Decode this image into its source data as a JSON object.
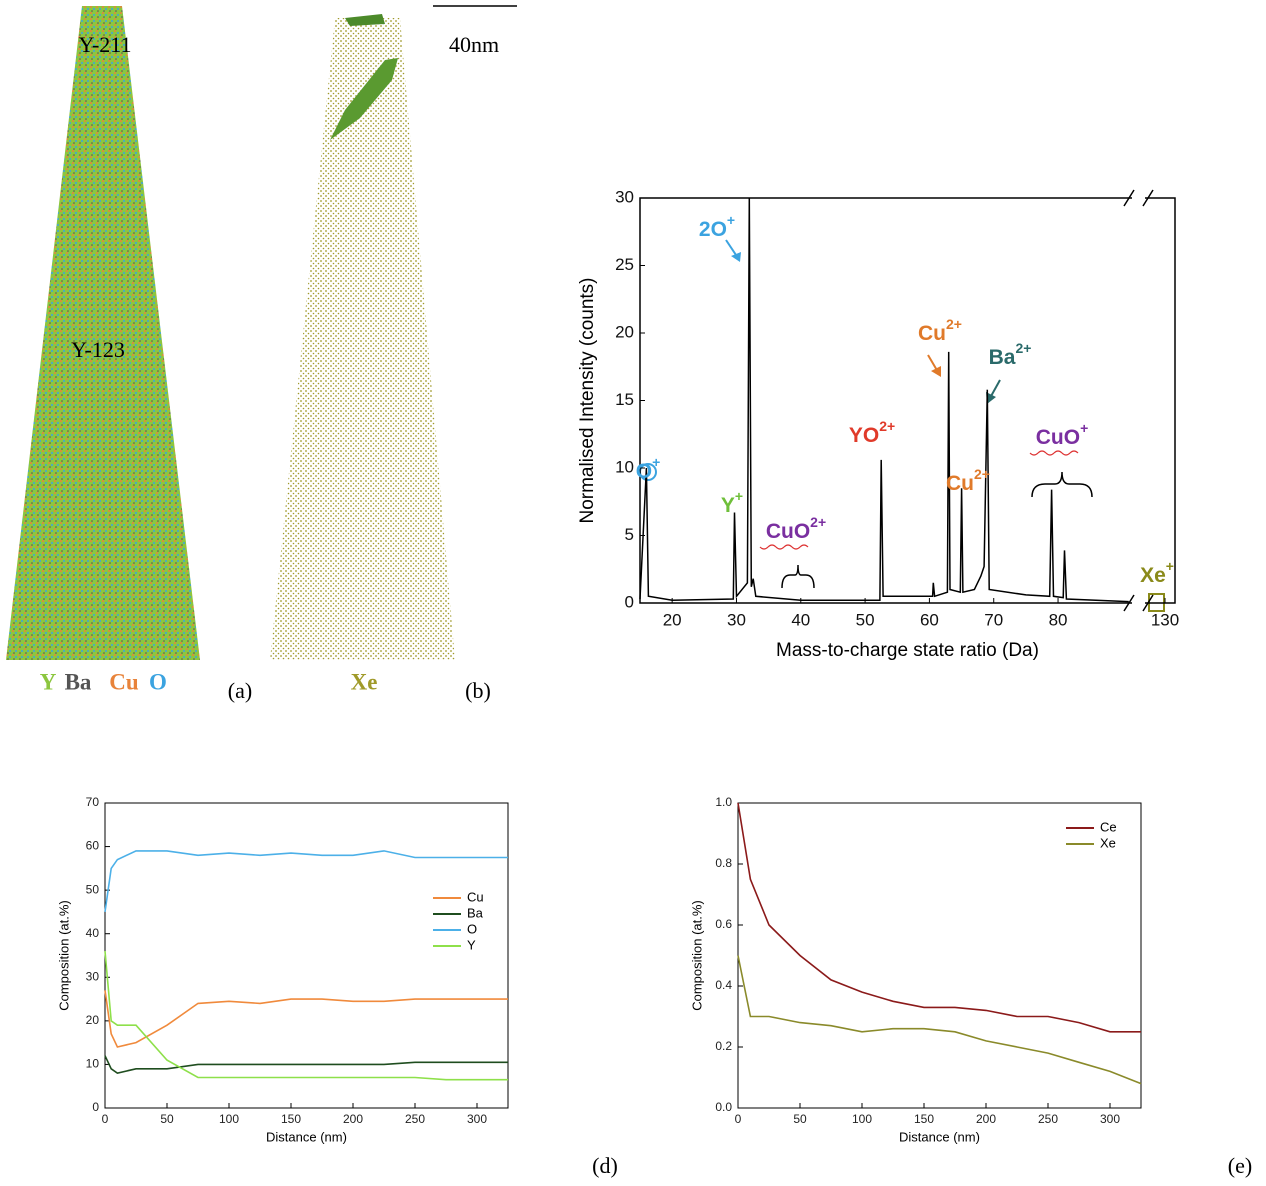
{
  "panels": {
    "a": {
      "label_top": "Y-211",
      "label_mid": "Y-123",
      "legend": [
        {
          "text": "Y",
          "color": "#8cc63f"
        },
        {
          "text": "Ba",
          "color": "#555555"
        },
        {
          "text": "Cu",
          "color": "#e8833a"
        },
        {
          "text": "O",
          "color": "#3ba3e0"
        }
      ],
      "tag": "(a)"
    },
    "b": {
      "scale": "40nm",
      "legend": {
        "text": "Xe",
        "color": "#a09a2a"
      },
      "tag": "(b)"
    },
    "d": {
      "tag": "(d)"
    },
    "e": {
      "tag": "(e)"
    }
  },
  "chart_data": [
    {
      "type": "line",
      "color": "#000000",
      "xlabel": "Mass-to-charge state ratio (Da)",
      "ylabel": "Normalised Intensity (counts)",
      "x": [
        15,
        16,
        16.3,
        20,
        29.5,
        29.7,
        30,
        31.7,
        32,
        32.3,
        32.6,
        33,
        40,
        52.3,
        52.5,
        52.8,
        60.5,
        60.6,
        60.8,
        62.8,
        63,
        63.2,
        64.8,
        65,
        65.2,
        67,
        67.5,
        68,
        68.5,
        69,
        69.3,
        75,
        78.7,
        79,
        79.3,
        80.8,
        81,
        81.3,
        91,
        128,
        130
      ],
      "values": [
        0.3,
        10,
        0.5,
        0.2,
        0.3,
        6.7,
        0.5,
        1.5,
        30,
        1.2,
        1.8,
        0.5,
        0.2,
        0.2,
        10.6,
        0.5,
        0.5,
        1.5,
        0.5,
        0.8,
        18.6,
        1,
        0.8,
        8.5,
        0.8,
        1,
        1.5,
        2,
        2.7,
        15.8,
        1,
        0.6,
        0.5,
        8.4,
        0.5,
        0.4,
        3.9,
        0.3,
        0.1,
        null,
        0.1
      ],
      "xlim": [
        15,
        131
      ],
      "xbreak": [
        91.5,
        128
      ],
      "xticks": [
        20,
        30,
        40,
        50,
        60,
        70,
        80,
        130
      ],
      "ylim": [
        0,
        30
      ],
      "yticks": [
        0,
        5,
        10,
        15,
        20,
        25,
        30
      ],
      "annotations": [
        {
          "text": "2O",
          "sup": "+",
          "color": "#3ba3e0"
        },
        {
          "text": "O",
          "sup": "+",
          "color": "#3ba3e0"
        },
        {
          "text": "Y",
          "sup": "+",
          "color": "#6fbf3a"
        },
        {
          "text": "CuO",
          "sup": "2+",
          "color": "#7a2fa0"
        },
        {
          "text": "YO",
          "sup": "2+",
          "color": "#e03a2a"
        },
        {
          "text": "Cu",
          "sup": "2+",
          "color": "#e07a2a"
        },
        {
          "text": "Ba",
          "sup": "2+",
          "color": "#2a6a6a"
        },
        {
          "text": "Cu",
          "sup": "2+",
          "color": "#e07a2a"
        },
        {
          "text": "CuO",
          "sup": "+",
          "color": "#7a2fa0"
        },
        {
          "text": "Xe",
          "sup": "+",
          "color": "#8a8a1a"
        }
      ]
    },
    {
      "type": "line",
      "xlabel": "Distance (nm)",
      "ylabel": "Composition (at.%)",
      "legend": "right",
      "x": [
        0,
        5,
        10,
        25,
        50,
        75,
        100,
        125,
        150,
        175,
        200,
        225,
        250,
        275,
        300,
        325
      ],
      "series": [
        {
          "name": "Cu",
          "color": "#f08a3c",
          "values": [
            27,
            17,
            14,
            15,
            19,
            24,
            24.5,
            24,
            25,
            25,
            24.5,
            24.5,
            25,
            25,
            25,
            25
          ]
        },
        {
          "name": "Ba",
          "color": "#1f4d1f",
          "values": [
            12,
            9,
            8,
            9,
            9,
            10,
            10,
            10,
            10,
            10,
            10,
            10,
            10.5,
            10.5,
            10.5,
            10.5
          ]
        },
        {
          "name": "O",
          "color": "#4cb0e8",
          "values": [
            45,
            55,
            57,
            59,
            59,
            58,
            58.5,
            58,
            58.5,
            58,
            58,
            59,
            57.5,
            57.5,
            57.5,
            57.5
          ]
        },
        {
          "name": "Y",
          "color": "#8ee04a",
          "values": [
            36,
            20,
            19,
            19,
            11,
            7,
            7,
            7,
            7,
            7,
            7,
            7,
            7,
            6.5,
            6.5,
            6.5
          ]
        }
      ],
      "xlim": [
        0,
        325
      ],
      "xticks": [
        0,
        50,
        100,
        150,
        200,
        250,
        300
      ],
      "ylim": [
        0,
        70
      ],
      "yticks": [
        0,
        10,
        20,
        30,
        40,
        50,
        60,
        70
      ]
    },
    {
      "type": "line",
      "xlabel": "Distance (nm)",
      "ylabel": "Composition (at.%)",
      "legend": "upper right",
      "x": [
        0,
        10,
        25,
        50,
        75,
        100,
        125,
        150,
        175,
        200,
        225,
        250,
        275,
        300,
        325
      ],
      "series": [
        {
          "name": "Ce",
          "color": "#8b1a1a",
          "values": [
            1.0,
            0.75,
            0.6,
            0.5,
            0.42,
            0.38,
            0.35,
            0.33,
            0.33,
            0.32,
            0.3,
            0.3,
            0.28,
            0.25,
            0.25
          ]
        },
        {
          "name": "Xe",
          "color": "#8a8a2a",
          "values": [
            0.5,
            0.3,
            0.3,
            0.28,
            0.27,
            0.25,
            0.26,
            0.26,
            0.25,
            0.22,
            0.2,
            0.18,
            0.15,
            0.12,
            0.08
          ]
        }
      ],
      "xlim": [
        0,
        325
      ],
      "xticks": [
        0,
        50,
        100,
        150,
        200,
        250,
        300
      ],
      "ylim": [
        0,
        1
      ],
      "yticks": [
        {
          "value": 0,
          "label": "0.0"
        },
        {
          "value": 0.2,
          "label": "0.2"
        },
        {
          "value": 0.4,
          "label": "0.4"
        },
        {
          "value": 0.6,
          "label": "0.6"
        },
        {
          "value": 0.8,
          "label": "0.8"
        },
        {
          "value": 1,
          "label": "1.0"
        }
      ]
    }
  ]
}
